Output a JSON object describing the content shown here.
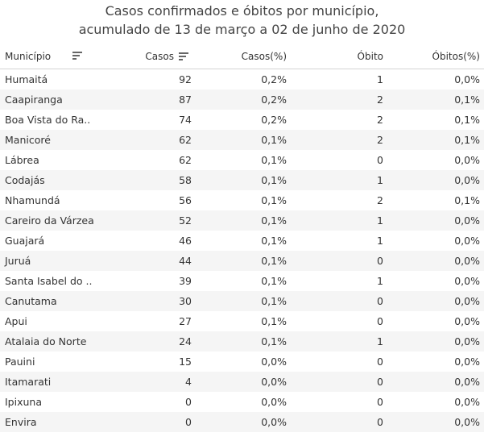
{
  "chart_data": {
    "type": "table",
    "title": "Casos confirmados e óbitos por município,",
    "subtitle": "acumulado de 13 de março a 02 de junho de 2020",
    "columns": [
      "Município",
      "Casos",
      "Casos(%)",
      "Óbito",
      "Óbitos(%)"
    ],
    "rows": [
      {
        "municipio": "Humaitá",
        "casos": 92,
        "casos_pct": "0,2%",
        "obito": 1,
        "obitos_pct": "0,0%"
      },
      {
        "municipio": "Caapiranga",
        "casos": 87,
        "casos_pct": "0,2%",
        "obito": 2,
        "obitos_pct": "0,1%"
      },
      {
        "municipio": "Boa Vista do Ra..",
        "casos": 74,
        "casos_pct": "0,2%",
        "obito": 2,
        "obitos_pct": "0,1%"
      },
      {
        "municipio": "Manicoré",
        "casos": 62,
        "casos_pct": "0,1%",
        "obito": 2,
        "obitos_pct": "0,1%"
      },
      {
        "municipio": "Lábrea",
        "casos": 62,
        "casos_pct": "0,1%",
        "obito": 0,
        "obitos_pct": "0,0%"
      },
      {
        "municipio": "Codajás",
        "casos": 58,
        "casos_pct": "0,1%",
        "obito": 1,
        "obitos_pct": "0,0%"
      },
      {
        "municipio": "Nhamundá",
        "casos": 56,
        "casos_pct": "0,1%",
        "obito": 2,
        "obitos_pct": "0,1%"
      },
      {
        "municipio": "Careiro da Várzea",
        "casos": 52,
        "casos_pct": "0,1%",
        "obito": 1,
        "obitos_pct": "0,0%"
      },
      {
        "municipio": "Guajará",
        "casos": 46,
        "casos_pct": "0,1%",
        "obito": 1,
        "obitos_pct": "0,0%"
      },
      {
        "municipio": "Juruá",
        "casos": 44,
        "casos_pct": "0,1%",
        "obito": 0,
        "obitos_pct": "0,0%"
      },
      {
        "municipio": "Santa Isabel do ..",
        "casos": 39,
        "casos_pct": "0,1%",
        "obito": 1,
        "obitos_pct": "0,0%"
      },
      {
        "municipio": "Canutama",
        "casos": 30,
        "casos_pct": "0,1%",
        "obito": 0,
        "obitos_pct": "0,0%"
      },
      {
        "municipio": "Apui",
        "casos": 27,
        "casos_pct": "0,1%",
        "obito": 0,
        "obitos_pct": "0,0%"
      },
      {
        "municipio": "Atalaia do Norte",
        "casos": 24,
        "casos_pct": "0,1%",
        "obito": 1,
        "obitos_pct": "0,0%"
      },
      {
        "municipio": "Pauini",
        "casos": 15,
        "casos_pct": "0,0%",
        "obito": 0,
        "obitos_pct": "0,0%"
      },
      {
        "municipio": "Itamarati",
        "casos": 4,
        "casos_pct": "0,0%",
        "obito": 0,
        "obitos_pct": "0,0%"
      },
      {
        "municipio": "Ipixuna",
        "casos": 0,
        "casos_pct": "0,0%",
        "obito": 0,
        "obitos_pct": "0,0%"
      },
      {
        "municipio": "Envira",
        "casos": 0,
        "casos_pct": "0,0%",
        "obito": 0,
        "obitos_pct": "0,0%"
      }
    ],
    "sort": {
      "column": "Casos",
      "order": "descending"
    }
  },
  "icons": {
    "municipio_sort": "sort-icon",
    "casos_sort": "sort-descending-icon"
  }
}
